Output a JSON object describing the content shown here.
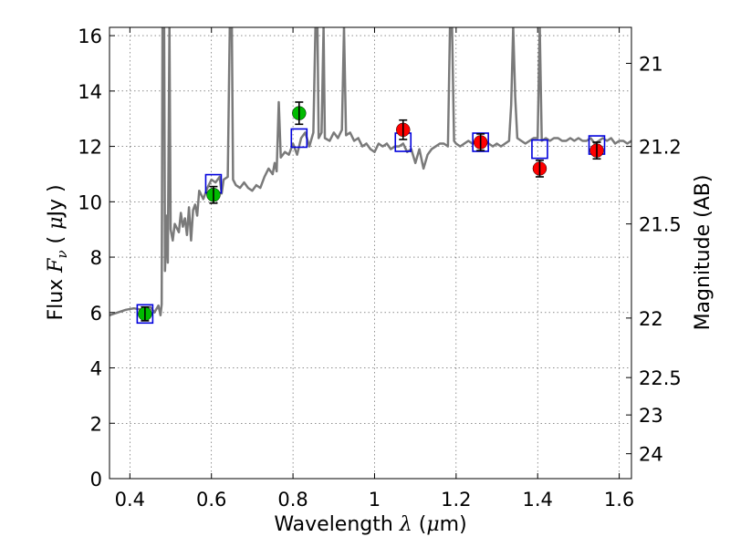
{
  "chart_data": {
    "type": "scatter",
    "xlabel": "Wavelength  λ (μm)",
    "ylabel": "Flux  F_ν  ( μJy )",
    "ylabel_right": "Magnitude (AB)",
    "xlim": [
      0.35,
      1.63
    ],
    "ylim": [
      0,
      16.3
    ],
    "grid": true,
    "x_ticks": [
      0.4,
      0.6,
      0.8,
      1.0,
      1.2,
      1.4,
      1.6
    ],
    "x_tick_labels": [
      "0.4",
      "0.6",
      "0.8",
      "1",
      "1.2",
      "1.4",
      "1.6"
    ],
    "y_ticks": [
      0,
      2,
      4,
      6,
      8,
      10,
      12,
      14,
      16
    ],
    "y_tick_labels": [
      "0",
      "2",
      "4",
      "6",
      "8",
      "10",
      "12",
      "14",
      "16"
    ],
    "right_ticks": [
      {
        "flux": 15.0,
        "label": "21"
      },
      {
        "flux": 12.0,
        "label": "21.2"
      },
      {
        "flux": 9.2,
        "label": "21.5"
      },
      {
        "flux": 5.8,
        "label": "22"
      },
      {
        "flux": 3.65,
        "label": "22.5"
      },
      {
        "flux": 2.3,
        "label": "23"
      },
      {
        "flux": 0.9,
        "label": "24"
      }
    ],
    "series": [
      {
        "kind": "spectrum",
        "color": "#7a7a7a",
        "points": [
          [
            0.35,
            5.9
          ],
          [
            0.37,
            6.0
          ],
          [
            0.39,
            6.1
          ],
          [
            0.41,
            6.15
          ],
          [
            0.43,
            6.1
          ],
          [
            0.45,
            6.2
          ],
          [
            0.46,
            6.0
          ],
          [
            0.47,
            6.25
          ],
          [
            0.475,
            5.9
          ],
          [
            0.478,
            6.3
          ],
          [
            0.48,
            16.3
          ],
          [
            0.484,
            16.3
          ],
          [
            0.486,
            7.5
          ],
          [
            0.49,
            9.5
          ],
          [
            0.493,
            7.8
          ],
          [
            0.497,
            16.3
          ],
          [
            0.5,
            9.0
          ],
          [
            0.505,
            8.6
          ],
          [
            0.51,
            9.2
          ],
          [
            0.52,
            8.9
          ],
          [
            0.525,
            9.6
          ],
          [
            0.53,
            9.1
          ],
          [
            0.535,
            9.4
          ],
          [
            0.54,
            8.8
          ],
          [
            0.545,
            9.8
          ],
          [
            0.55,
            8.6
          ],
          [
            0.555,
            9.7
          ],
          [
            0.56,
            9.9
          ],
          [
            0.565,
            9.5
          ],
          [
            0.57,
            10.4
          ],
          [
            0.58,
            10.1
          ],
          [
            0.59,
            10.5
          ],
          [
            0.6,
            10.8
          ],
          [
            0.61,
            10.7
          ],
          [
            0.62,
            10.9
          ],
          [
            0.625,
            10.3
          ],
          [
            0.63,
            10.8
          ],
          [
            0.64,
            10.9
          ],
          [
            0.645,
            16.3
          ],
          [
            0.65,
            16.3
          ],
          [
            0.653,
            10.8
          ],
          [
            0.66,
            10.6
          ],
          [
            0.67,
            10.5
          ],
          [
            0.68,
            10.7
          ],
          [
            0.69,
            10.5
          ],
          [
            0.7,
            10.4
          ],
          [
            0.71,
            10.6
          ],
          [
            0.72,
            10.5
          ],
          [
            0.73,
            10.9
          ],
          [
            0.74,
            11.2
          ],
          [
            0.75,
            11.0
          ],
          [
            0.755,
            11.4
          ],
          [
            0.76,
            11.1
          ],
          [
            0.765,
            13.6
          ],
          [
            0.77,
            11.6
          ],
          [
            0.78,
            11.8
          ],
          [
            0.79,
            11.7
          ],
          [
            0.8,
            12.1
          ],
          [
            0.81,
            11.7
          ],
          [
            0.82,
            12.3
          ],
          [
            0.83,
            12.5
          ],
          [
            0.84,
            12.0
          ],
          [
            0.85,
            12.5
          ],
          [
            0.855,
            16.3
          ],
          [
            0.86,
            16.3
          ],
          [
            0.863,
            12.3
          ],
          [
            0.87,
            12.5
          ],
          [
            0.875,
            16.3
          ],
          [
            0.878,
            12.3
          ],
          [
            0.89,
            12.2
          ],
          [
            0.9,
            12.5
          ],
          [
            0.91,
            12.3
          ],
          [
            0.92,
            12.6
          ],
          [
            0.925,
            16.3
          ],
          [
            0.93,
            12.4
          ],
          [
            0.94,
            12.5
          ],
          [
            0.95,
            12.2
          ],
          [
            0.96,
            12.3
          ],
          [
            0.97,
            12.0
          ],
          [
            0.98,
            12.1
          ],
          [
            0.99,
            11.9
          ],
          [
            1.0,
            11.8
          ],
          [
            1.01,
            12.1
          ],
          [
            1.02,
            12.0
          ],
          [
            1.03,
            12.1
          ],
          [
            1.04,
            11.9
          ],
          [
            1.05,
            12.0
          ],
          [
            1.06,
            12.0
          ],
          [
            1.07,
            12.1
          ],
          [
            1.08,
            11.8
          ],
          [
            1.09,
            11.9
          ],
          [
            1.1,
            11.4
          ],
          [
            1.11,
            11.9
          ],
          [
            1.12,
            11.2
          ],
          [
            1.13,
            11.7
          ],
          [
            1.14,
            11.9
          ],
          [
            1.15,
            12.0
          ],
          [
            1.16,
            12.1
          ],
          [
            1.17,
            12.1
          ],
          [
            1.18,
            12.0
          ],
          [
            1.185,
            16.3
          ],
          [
            1.19,
            16.3
          ],
          [
            1.195,
            12.2
          ],
          [
            1.2,
            12.1
          ],
          [
            1.21,
            12.0
          ],
          [
            1.22,
            12.1
          ],
          [
            1.23,
            12.2
          ],
          [
            1.24,
            12.1
          ],
          [
            1.25,
            12.2
          ],
          [
            1.26,
            12.1
          ],
          [
            1.27,
            12.2
          ],
          [
            1.28,
            12.1
          ],
          [
            1.29,
            12.0
          ],
          [
            1.3,
            12.1
          ],
          [
            1.31,
            12.0
          ],
          [
            1.32,
            12.1
          ],
          [
            1.33,
            12.2
          ],
          [
            1.335,
            13.5
          ],
          [
            1.34,
            16.3
          ],
          [
            1.345,
            13.8
          ],
          [
            1.35,
            12.3
          ],
          [
            1.36,
            12.2
          ],
          [
            1.37,
            12.1
          ],
          [
            1.38,
            12.2
          ],
          [
            1.39,
            12.3
          ],
          [
            1.4,
            12.3
          ],
          [
            1.405,
            16.3
          ],
          [
            1.41,
            12.2
          ],
          [
            1.42,
            12.3
          ],
          [
            1.43,
            12.2
          ],
          [
            1.44,
            12.3
          ],
          [
            1.45,
            12.3
          ],
          [
            1.46,
            12.2
          ],
          [
            1.47,
            12.2
          ],
          [
            1.48,
            12.3
          ],
          [
            1.49,
            12.2
          ],
          [
            1.5,
            12.3
          ],
          [
            1.51,
            12.2
          ],
          [
            1.52,
            12.2
          ],
          [
            1.53,
            12.3
          ],
          [
            1.54,
            12.1
          ],
          [
            1.55,
            12.2
          ],
          [
            1.56,
            12.3
          ],
          [
            1.57,
            12.2
          ],
          [
            1.58,
            12.3
          ],
          [
            1.59,
            12.1
          ],
          [
            1.6,
            12.2
          ],
          [
            1.61,
            12.2
          ],
          [
            1.62,
            12.1
          ],
          [
            1.63,
            12.2
          ]
        ]
      },
      {
        "kind": "model_boxes",
        "color": "#0000dd",
        "points": [
          [
            0.437,
            5.95
          ],
          [
            0.605,
            10.65
          ],
          [
            0.815,
            12.3
          ],
          [
            1.07,
            12.15
          ],
          [
            1.26,
            12.15
          ],
          [
            1.405,
            11.9
          ],
          [
            1.545,
            12.05
          ]
        ]
      },
      {
        "kind": "green_points",
        "color": "#00bb00",
        "points": [
          [
            0.437,
            5.95
          ],
          [
            0.605,
            10.25
          ],
          [
            0.815,
            13.2
          ]
        ],
        "errors": [
          0.25,
          0.3,
          0.4
        ]
      },
      {
        "kind": "red_points",
        "color": "#ff0000",
        "points": [
          [
            1.07,
            12.6
          ],
          [
            1.26,
            12.15
          ],
          [
            1.405,
            11.2
          ],
          [
            1.545,
            11.85
          ]
        ],
        "errors": [
          0.35,
          0.3,
          0.3,
          0.3
        ]
      }
    ]
  }
}
